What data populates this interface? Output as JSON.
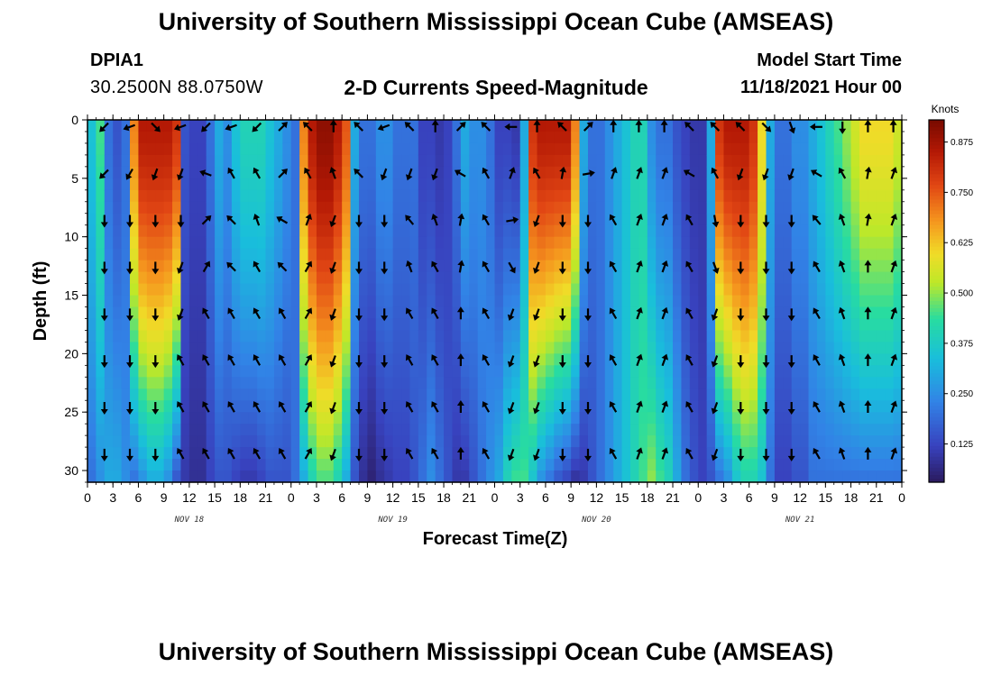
{
  "header": {
    "title": "University of Southern Mississippi Ocean Cube (AMSEAS)",
    "station_id": "DPIA1",
    "coords": "30.2500N  88.0750W",
    "subtitle": "2-D Currents Speed-Magnitude",
    "model_start_label": "Model Start Time",
    "model_start_value": "11/18/2021 Hour 00"
  },
  "footer": {
    "title": "University of Southern Mississippi Ocean Cube (AMSEAS)"
  },
  "colors": {
    "low": "#2a1a5e",
    "mid": "#d8e820",
    "high": "#7a0a00"
  },
  "chart_data": {
    "type": "heatmap",
    "title": "2-D Currents Speed-Magnitude",
    "xlabel": "Forecast Time(Z)",
    "ylabel": "Depth (ft)",
    "x_range_hours": [
      0,
      96
    ],
    "y_range_ft": [
      0,
      31
    ],
    "x_tick_labels": [
      "0",
      "3",
      "6",
      "9",
      "12",
      "15",
      "18",
      "21",
      "0",
      "3",
      "6",
      "9",
      "12",
      "15",
      "18",
      "21",
      "0",
      "3",
      "6",
      "9",
      "12",
      "15",
      "18",
      "21",
      "0",
      "3",
      "6",
      "9",
      "12",
      "15",
      "18",
      "21",
      "0"
    ],
    "y_tick_labels": [
      "0",
      "5",
      "10",
      "15",
      "20",
      "25",
      "30"
    ],
    "y_tick_values": [
      0,
      5,
      10,
      15,
      20,
      25,
      30
    ],
    "day_labels": [
      {
        "text": "NOV 18",
        "hour": 12
      },
      {
        "text": "NOV 19",
        "hour": 36
      },
      {
        "text": "NOV 20",
        "hour": 60
      },
      {
        "text": "NOV 21",
        "hour": 84
      }
    ],
    "colorbar": {
      "unit": "Knots",
      "range": [
        0.03,
        0.93
      ],
      "tick_labels": [
        "0.875",
        "0.750",
        "0.625",
        "0.500",
        "0.375",
        "0.250",
        "0.125"
      ],
      "tick_values": [
        0.875,
        0.75,
        0.625,
        0.5,
        0.375,
        0.25,
        0.125
      ]
    },
    "speed_hours": [
      0,
      1,
      2,
      3,
      4,
      5,
      6,
      7,
      8,
      9,
      10,
      11,
      12,
      13,
      14,
      15,
      16,
      17,
      18,
      19,
      20,
      21,
      22,
      23,
      24,
      25,
      26,
      27,
      28,
      29,
      30,
      31,
      32,
      33,
      34,
      35,
      36,
      37,
      38,
      39,
      40,
      41,
      42,
      43,
      44,
      45,
      46,
      47,
      48,
      49,
      50,
      51,
      52,
      53,
      54,
      55,
      56,
      57,
      58,
      59,
      60,
      61,
      62,
      63,
      64,
      65,
      66,
      67,
      68,
      69,
      70,
      71,
      72,
      73,
      74,
      75,
      76,
      77,
      78,
      79,
      80,
      81,
      82,
      83,
      84,
      85,
      86,
      87,
      88,
      89,
      90,
      91,
      92,
      93,
      94,
      95,
      96
    ],
    "speed_surface_knots": [
      0.35,
      0.45,
      0.2,
      0.15,
      0.2,
      0.7,
      0.85,
      0.85,
      0.85,
      0.85,
      0.8,
      0.15,
      0.12,
      0.12,
      0.2,
      0.3,
      0.25,
      0.35,
      0.4,
      0.4,
      0.4,
      0.35,
      0.3,
      0.25,
      0.2,
      0.7,
      0.85,
      0.9,
      0.9,
      0.85,
      0.75,
      0.3,
      0.2,
      0.2,
      0.25,
      0.25,
      0.2,
      0.2,
      0.2,
      0.12,
      0.12,
      0.1,
      0.12,
      0.2,
      0.3,
      0.25,
      0.25,
      0.2,
      0.12,
      0.12,
      0.1,
      0.3,
      0.8,
      0.85,
      0.85,
      0.85,
      0.85,
      0.7,
      0.3,
      0.2,
      0.2,
      0.25,
      0.3,
      0.35,
      0.4,
      0.4,
      0.25,
      0.2,
      0.2,
      0.15,
      0.12,
      0.1,
      0.1,
      0.3,
      0.8,
      0.85,
      0.85,
      0.85,
      0.8,
      0.6,
      0.3,
      0.2,
      0.2,
      0.25,
      0.25,
      0.3,
      0.35,
      0.4,
      0.45,
      0.5,
      0.55,
      0.6,
      0.6,
      0.6,
      0.6,
      0.55,
      0.5
    ],
    "speed_bottom_knots": [
      0.2,
      0.25,
      0.3,
      0.3,
      0.25,
      0.2,
      0.25,
      0.3,
      0.3,
      0.25,
      0.15,
      0.1,
      0.08,
      0.08,
      0.12,
      0.15,
      0.15,
      0.12,
      0.1,
      0.1,
      0.12,
      0.15,
      0.15,
      0.15,
      0.2,
      0.3,
      0.4,
      0.45,
      0.45,
      0.4,
      0.3,
      0.15,
      0.08,
      0.05,
      0.08,
      0.1,
      0.12,
      0.12,
      0.15,
      0.2,
      0.25,
      0.2,
      0.15,
      0.1,
      0.1,
      0.15,
      0.2,
      0.25,
      0.3,
      0.4,
      0.45,
      0.45,
      0.35,
      0.25,
      0.2,
      0.15,
      0.12,
      0.08,
      0.1,
      0.15,
      0.2,
      0.25,
      0.3,
      0.35,
      0.4,
      0.45,
      0.5,
      0.45,
      0.4,
      0.3,
      0.2,
      0.15,
      0.12,
      0.15,
      0.2,
      0.25,
      0.35,
      0.4,
      0.4,
      0.35,
      0.2,
      0.12,
      0.12,
      0.15,
      0.15,
      0.2,
      0.2,
      0.2,
      0.2,
      0.2,
      0.2,
      0.2,
      0.2,
      0.2,
      0.2,
      0.2,
      0.2
    ],
    "vector_hours": [
      2,
      5,
      8,
      11,
      14,
      17,
      20,
      23,
      26,
      29,
      32,
      35,
      38,
      41,
      44,
      47,
      50,
      53,
      56,
      59,
      62,
      65,
      68,
      71,
      74,
      77,
      80,
      83,
      86,
      89,
      92,
      95
    ],
    "vector_depths_ft": [
      0,
      4,
      8,
      12,
      16,
      20,
      24,
      28
    ],
    "vector_directions_deg": [
      [
        225,
        250,
        135,
        250,
        225,
        250,
        225,
        45,
        315,
        0,
        315,
        250,
        315,
        0,
        45,
        315,
        270,
        0,
        315,
        45,
        0,
        0,
        0,
        315,
        315,
        315,
        135,
        160,
        270,
        180,
        0,
        0
      ],
      [
        225,
        210,
        200,
        200,
        290,
        330,
        330,
        45,
        330,
        340,
        315,
        200,
        200,
        200,
        300,
        330,
        20,
        330,
        10,
        80,
        20,
        20,
        20,
        300,
        330,
        200,
        200,
        200,
        300,
        330,
        10,
        20
      ],
      [
        180,
        180,
        180,
        180,
        45,
        315,
        340,
        300,
        20,
        200,
        180,
        180,
        320,
        340,
        10,
        330,
        80,
        200,
        180,
        180,
        330,
        20,
        20,
        330,
        170,
        180,
        180,
        180,
        320,
        340,
        10,
        20
      ],
      [
        180,
        180,
        180,
        200,
        30,
        315,
        330,
        315,
        30,
        200,
        180,
        180,
        340,
        330,
        10,
        330,
        150,
        200,
        180,
        180,
        330,
        20,
        20,
        330,
        160,
        180,
        180,
        180,
        330,
        340,
        0,
        20
      ],
      [
        180,
        180,
        180,
        200,
        330,
        330,
        330,
        330,
        30,
        200,
        180,
        180,
        330,
        330,
        0,
        330,
        200,
        200,
        180,
        180,
        330,
        20,
        20,
        330,
        200,
        180,
        180,
        180,
        330,
        340,
        0,
        20
      ],
      [
        180,
        180,
        180,
        330,
        330,
        330,
        330,
        330,
        30,
        200,
        180,
        180,
        330,
        330,
        0,
        330,
        200,
        200,
        180,
        180,
        330,
        20,
        20,
        330,
        200,
        180,
        180,
        180,
        330,
        340,
        0,
        20
      ],
      [
        180,
        180,
        180,
        330,
        330,
        330,
        330,
        330,
        30,
        200,
        180,
        180,
        330,
        330,
        0,
        330,
        200,
        200,
        180,
        180,
        330,
        20,
        20,
        330,
        200,
        180,
        180,
        180,
        330,
        340,
        0,
        20
      ],
      [
        180,
        180,
        180,
        330,
        330,
        330,
        330,
        330,
        30,
        200,
        180,
        180,
        330,
        330,
        0,
        330,
        200,
        200,
        180,
        180,
        330,
        20,
        20,
        330,
        200,
        180,
        180,
        180,
        330,
        340,
        0,
        20
      ]
    ]
  }
}
